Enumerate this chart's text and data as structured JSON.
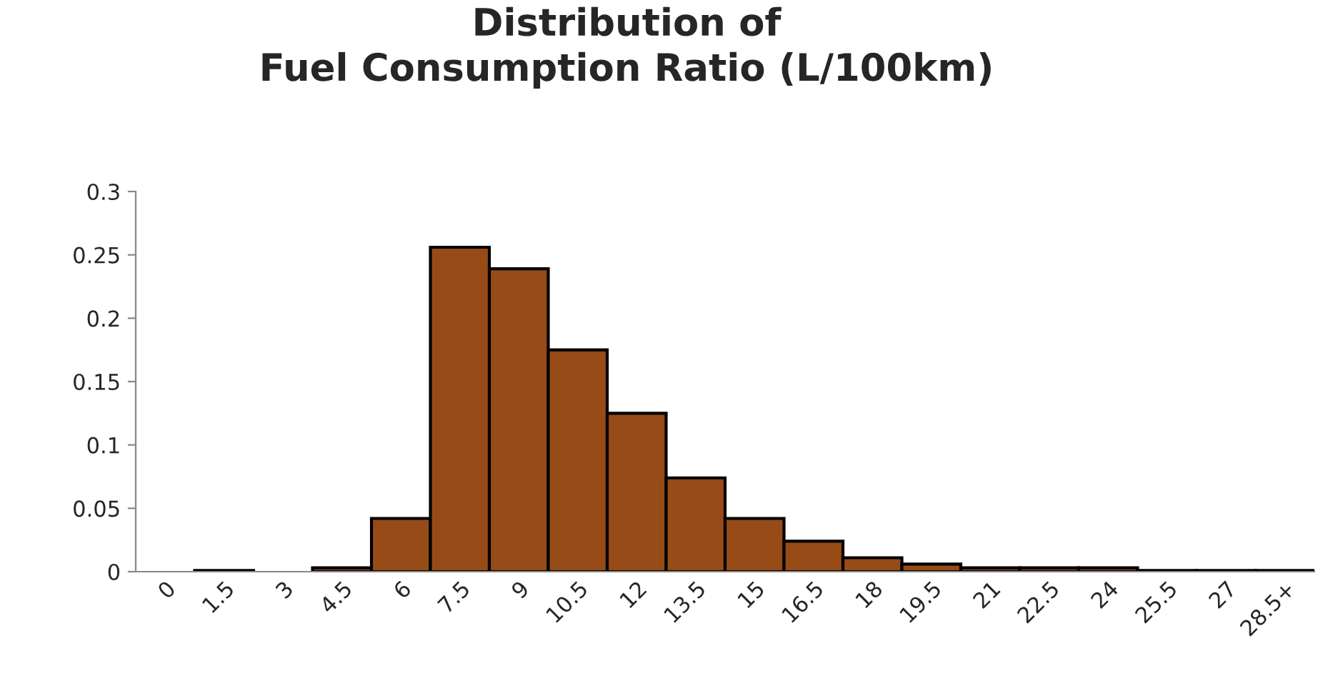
{
  "chart_data": {
    "type": "bar",
    "title": "Distribution of\nFuel Consumption Ratio (L/100km)",
    "categories": [
      "0",
      "1.5",
      "3",
      "4.5",
      "6",
      "7.5",
      "9",
      "10.5",
      "12",
      "13.5",
      "15",
      "16.5",
      "18",
      "19.5",
      "21",
      "22.5",
      "24",
      "25.5",
      "27",
      "28.5+"
    ],
    "values": [
      0,
      0.001,
      0,
      0.003,
      0.042,
      0.256,
      0.239,
      0.175,
      0.125,
      0.074,
      0.042,
      0.024,
      0.011,
      0.006,
      0.003,
      0.003,
      0.003,
      0.001,
      0.001,
      0.001
    ],
    "color": "#974b16",
    "ylim": [
      0,
      0.3
    ],
    "yticks": [
      {
        "value": 0,
        "label": "0"
      },
      0.05,
      0.1,
      0.15,
      0.2,
      0.25,
      0.3
    ],
    "grid": false,
    "legend": false
  }
}
